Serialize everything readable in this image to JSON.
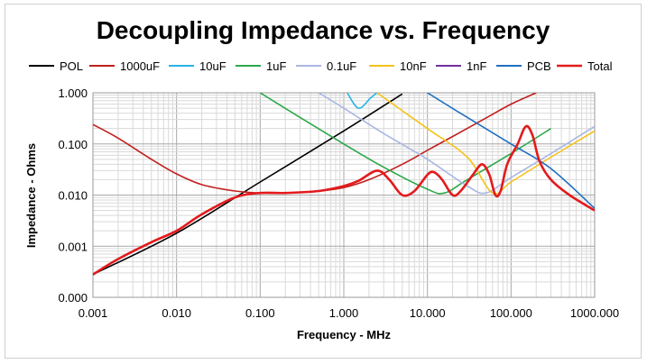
{
  "chart_data": {
    "type": "line",
    "title": "Decoupling Impedance vs. Frequency",
    "xlabel": "Frequency - MHz",
    "ylabel": "Impedance - Ohms",
    "x_scale": "log",
    "y_scale": "log",
    "xlim": [
      0.001,
      1000
    ],
    "ylim": [
      0.0001,
      1
    ],
    "x_ticks": [
      0.001,
      0.01,
      0.1,
      1,
      10,
      100,
      1000
    ],
    "x_tick_labels": [
      "0.001",
      "0.010",
      "0.100",
      "1.000",
      "10.000",
      "100.000",
      "1000.000"
    ],
    "y_ticks": [
      0.0001,
      0.001,
      0.01,
      0.1,
      1
    ],
    "y_tick_labels": [
      "0.000",
      "0.001",
      "0.010",
      "0.100",
      "1.000"
    ],
    "grid": true,
    "legend_position": "top",
    "series": [
      {
        "name": "POL",
        "color": "#000000",
        "x": [
          0.001,
          0.01,
          0.1,
          1,
          5
        ],
        "y": [
          0.00028,
          0.0018,
          0.018,
          0.18,
          0.95
        ]
      },
      {
        "name": "1000uF",
        "color": "#c0201e",
        "x": [
          0.001,
          0.002,
          0.005,
          0.01,
          0.02,
          0.05,
          0.1,
          0.2,
          0.5,
          1,
          2,
          5,
          10,
          20,
          50,
          100,
          200
        ],
        "y": [
          0.24,
          0.13,
          0.05,
          0.026,
          0.016,
          0.012,
          0.011,
          0.011,
          0.012,
          0.014,
          0.02,
          0.04,
          0.075,
          0.14,
          0.32,
          0.6,
          1.0
        ]
      },
      {
        "name": "10uF",
        "color": "#27b5e5",
        "x": [
          1.1,
          1.5,
          2.1,
          2.5
        ],
        "y": [
          1.0,
          0.5,
          0.8,
          1.0
        ]
      },
      {
        "name": "1uF",
        "color": "#2ca84a",
        "x": [
          0.1,
          0.3,
          1,
          3,
          10,
          16,
          30,
          100,
          300
        ],
        "y": [
          1.0,
          0.33,
          0.1,
          0.035,
          0.013,
          0.011,
          0.02,
          0.065,
          0.2
        ]
      },
      {
        "name": "0.1uF",
        "color": "#a9b7e2",
        "x": [
          0.5,
          1,
          3,
          10,
          30,
          50,
          100,
          300,
          1000
        ],
        "y": [
          1.0,
          0.5,
          0.16,
          0.05,
          0.015,
          0.011,
          0.022,
          0.065,
          0.22
        ]
      },
      {
        "name": "10nF",
        "color": "#f5c218",
        "x": [
          2.5,
          10,
          30,
          60,
          100,
          300,
          1000
        ],
        "y": [
          1.0,
          0.2,
          0.055,
          0.011,
          0.018,
          0.055,
          0.18
        ]
      },
      {
        "name": "1nF",
        "color": "#7030a0",
        "x": [],
        "y": []
      },
      {
        "name": "PCB",
        "color": "#1f6fbf",
        "x": [
          10,
          30,
          100,
          300,
          1000
        ],
        "y": [
          1.0,
          0.33,
          0.1,
          0.033,
          0.0055
        ]
      },
      {
        "name": "Total",
        "color": "#e31a1c",
        "x": [
          0.001,
          0.002,
          0.005,
          0.01,
          0.02,
          0.05,
          0.1,
          0.2,
          0.5,
          1,
          1.5,
          2.5,
          3.5,
          5,
          7,
          10,
          12,
          15,
          20,
          25,
          35,
          45,
          55,
          65,
          75,
          90,
          120,
          150,
          180,
          220,
          300,
          500,
          1000
        ],
        "y": [
          0.00028,
          0.00056,
          0.0012,
          0.002,
          0.0042,
          0.009,
          0.011,
          0.011,
          0.012,
          0.015,
          0.019,
          0.03,
          0.02,
          0.01,
          0.012,
          0.025,
          0.028,
          0.02,
          0.01,
          0.012,
          0.025,
          0.04,
          0.025,
          0.01,
          0.012,
          0.04,
          0.1,
          0.22,
          0.15,
          0.045,
          0.02,
          0.01,
          0.005
        ]
      }
    ]
  }
}
